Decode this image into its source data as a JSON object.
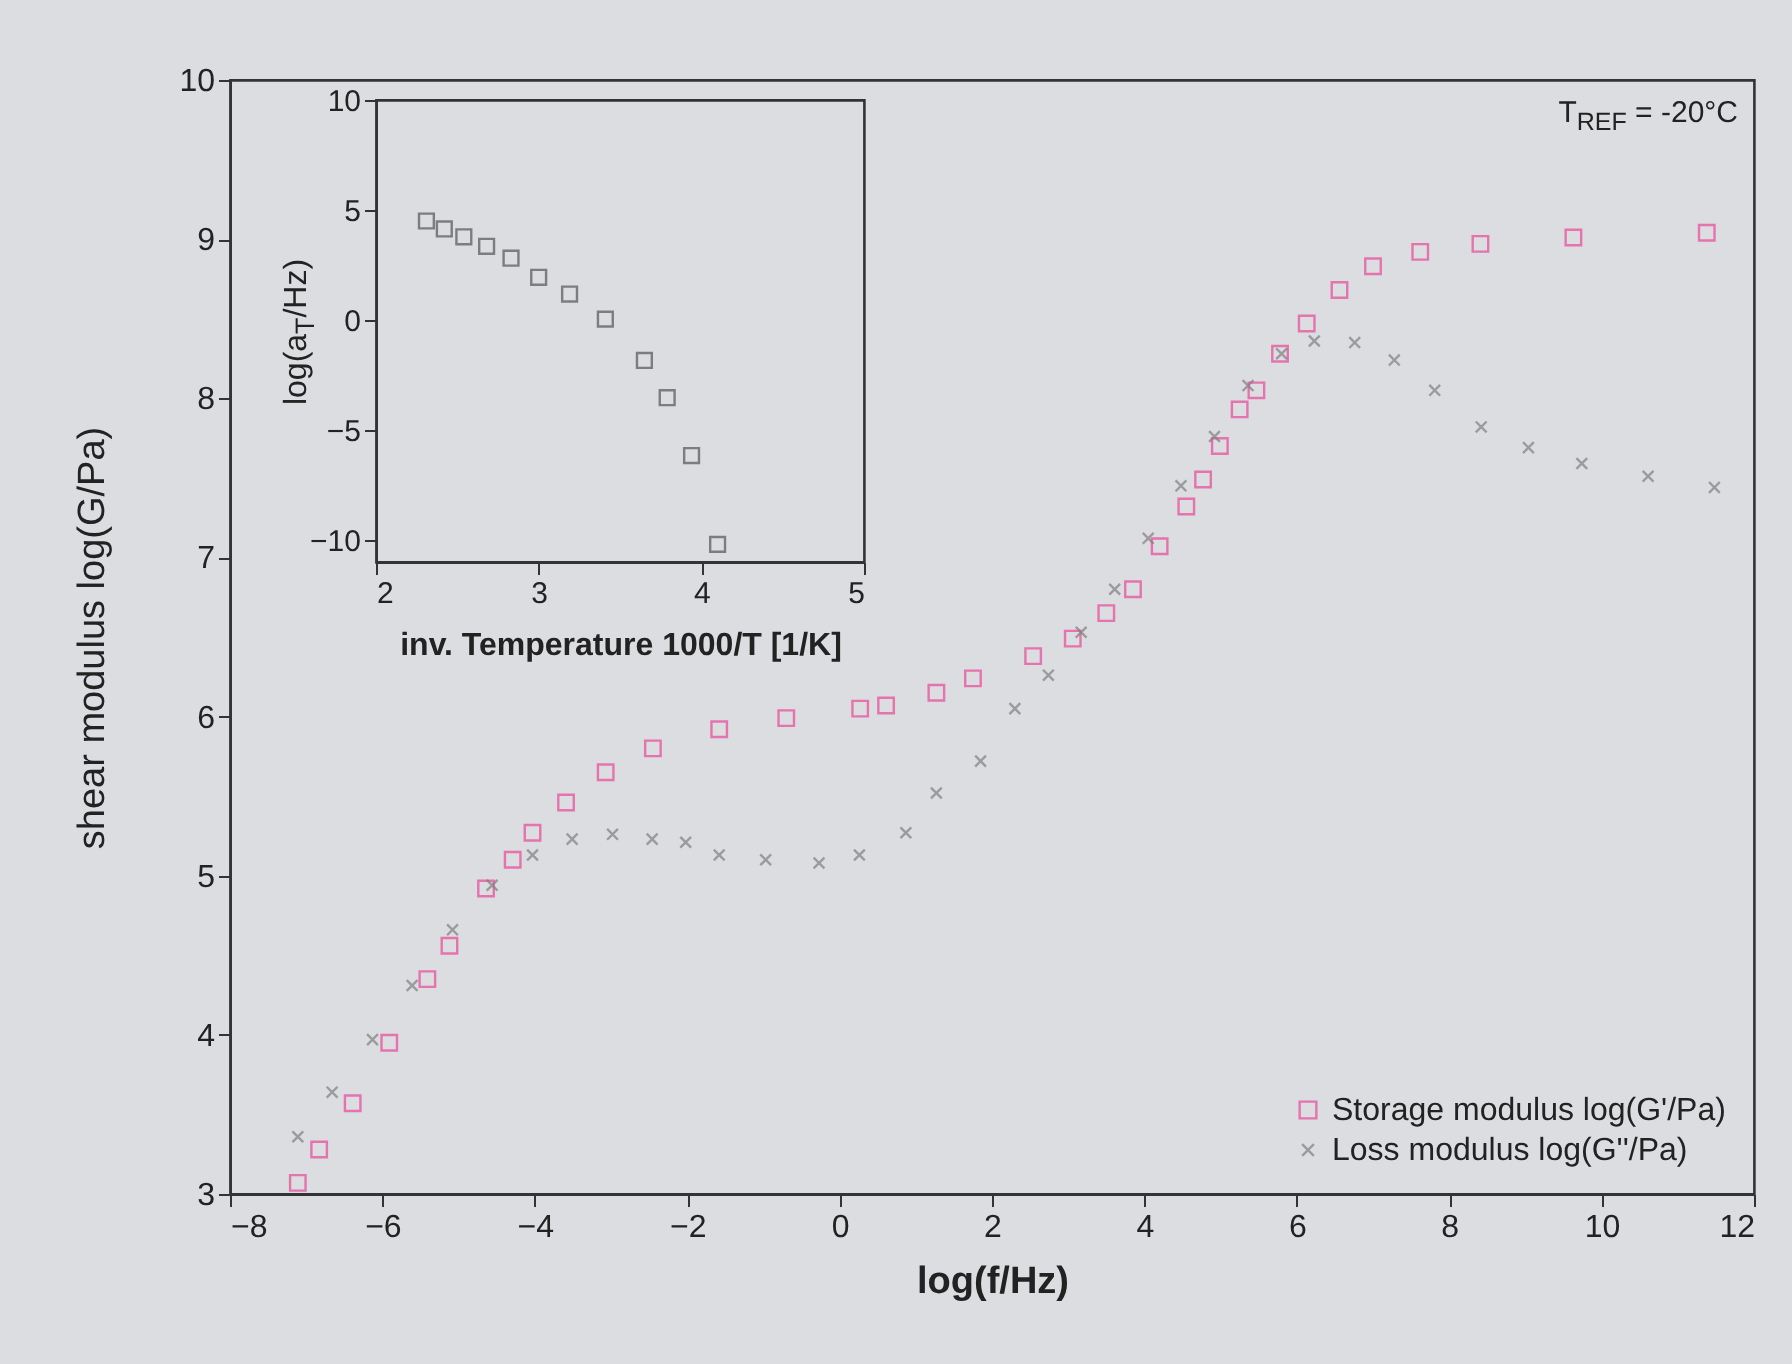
{
  "chart_data": [
    {
      "type": "scatter",
      "xlabel": "log(f/Hz)",
      "ylabel": "shear modulus log(G/Pa)",
      "xlim": [
        -8,
        12
      ],
      "xticks": [
        -8,
        -6,
        -4,
        -2,
        0,
        2,
        4,
        6,
        8,
        10,
        12
      ],
      "ylim": [
        3,
        10
      ],
      "yticks": [
        3,
        4,
        5,
        6,
        7,
        8,
        9,
        10
      ],
      "grid": false,
      "legend": "bottom right",
      "annotations": [
        "T$_{REF}$ = -20°C"
      ],
      "series": [
        {
          "name": "Storage modulus log(G'/Pa)",
          "color": "#e8479a",
          "marker": "square",
          "x": [
            -7.11,
            -6.83,
            -6.39,
            -5.91,
            -5.41,
            -5.12,
            -4.64,
            -4.29,
            -4.03,
            -3.59,
            -3.07,
            -2.45,
            -1.58,
            -0.7,
            0.27,
            0.61,
            1.27,
            1.75,
            2.54,
            3.06,
            3.5,
            3.85,
            4.2,
            4.55,
            4.77,
            4.99,
            5.25,
            5.47,
            5.78,
            6.13,
            6.56,
            7.0,
            7.62,
            8.41,
            9.63,
            11.38
          ],
          "values": [
            3.07,
            3.28,
            3.57,
            3.95,
            4.35,
            4.56,
            4.92,
            5.1,
            5.27,
            5.46,
            5.65,
            5.8,
            5.92,
            5.99,
            6.05,
            6.07,
            6.15,
            6.24,
            6.38,
            6.49,
            6.65,
            6.8,
            7.07,
            7.32,
            7.49,
            7.7,
            7.93,
            8.05,
            8.28,
            8.47,
            8.68,
            8.83,
            8.92,
            8.97,
            9.01,
            9.04
          ]
        },
        {
          "name": "Loss modulus log(G''/Pa)",
          "color": "#808080",
          "marker": "cross",
          "x": [
            -7.11,
            -6.66,
            -6.13,
            -5.61,
            -5.08,
            -4.56,
            -4.03,
            -3.51,
            -2.98,
            -2.46,
            -2.02,
            -1.58,
            -0.97,
            -0.27,
            0.26,
            0.87,
            1.27,
            1.85,
            2.3,
            2.74,
            3.17,
            3.61,
            4.05,
            4.48,
            4.92,
            5.36,
            5.8,
            6.23,
            6.76,
            7.28,
            7.81,
            8.42,
            9.04,
            9.74,
            10.61,
            11.48
          ],
          "values": [
            3.36,
            3.64,
            3.97,
            4.31,
            4.66,
            4.94,
            5.13,
            5.23,
            5.26,
            5.23,
            5.21,
            5.13,
            5.1,
            5.08,
            5.13,
            5.27,
            5.52,
            5.72,
            6.05,
            6.26,
            6.53,
            6.8,
            7.12,
            7.45,
            7.76,
            8.08,
            8.28,
            8.36,
            8.35,
            8.24,
            8.05,
            7.82,
            7.69,
            7.59,
            7.51,
            7.44
          ]
        }
      ]
    },
    {
      "type": "scatter",
      "xlabel": "inv. Temperature 1000/T [1/K]",
      "ylabel": "log(a$_{T}$/Hz)",
      "xlim": [
        2,
        5
      ],
      "xticks": [
        2,
        3,
        4,
        5
      ],
      "ylim": [
        -11,
        10
      ],
      "yticks": [
        -10,
        -5,
        0,
        5,
        10
      ],
      "grid": false,
      "x": [
        2.31,
        2.42,
        2.54,
        2.68,
        2.83,
        3.0,
        3.19,
        3.41,
        3.65,
        3.79,
        3.94,
        4.1
      ],
      "series": [
        {
          "color": "#555555",
          "marker": "square",
          "values": [
            4.5,
            4.14,
            3.78,
            3.35,
            2.81,
            1.94,
            1.18,
            0.04,
            -1.84,
            -3.53,
            -6.16,
            -10.2
          ]
        }
      ]
    }
  ]
}
